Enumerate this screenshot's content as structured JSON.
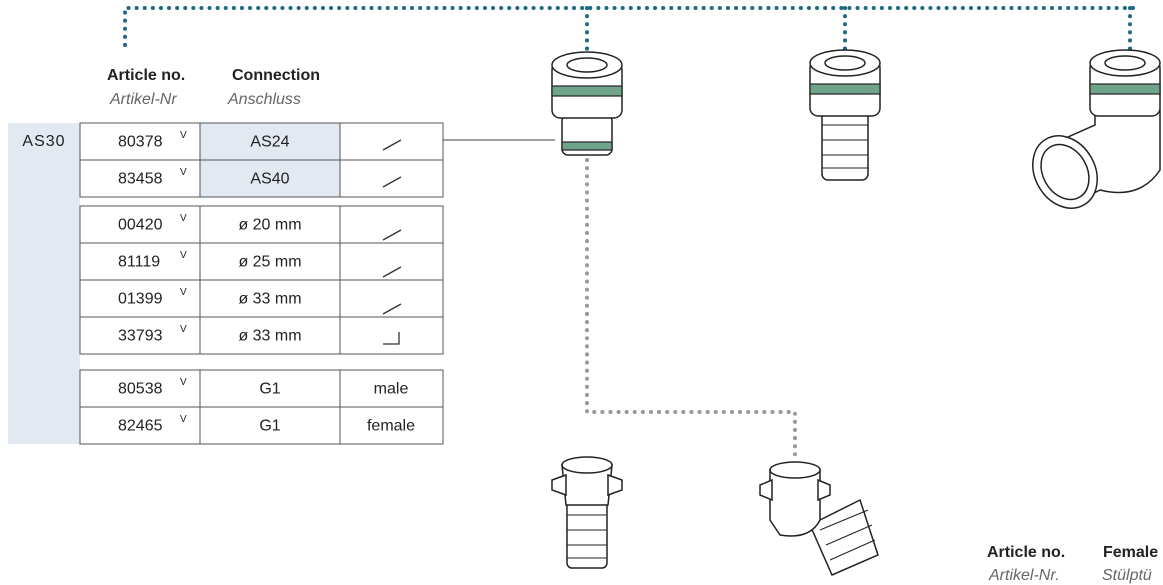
{
  "header": {
    "article_label": "Article no.",
    "article_label_de": "Artikel-Nr",
    "connection_label": "Connection",
    "connection_label_de": "Anschluss"
  },
  "table": {
    "group_label": "AS30",
    "rows": [
      [
        "80378",
        "V",
        "AS24"
      ],
      [
        "83458",
        "V",
        "AS40"
      ],
      [
        "00420",
        "V",
        "ø 20 mm"
      ],
      [
        "81119",
        "V",
        "ø 25 mm"
      ],
      [
        "01399",
        "V",
        "ø 33 mm"
      ],
      [
        "33793",
        "V",
        "ø 33 mm"
      ],
      [
        "80538",
        "V",
        "G1",
        "male"
      ],
      [
        "82465",
        "V",
        "G1",
        "female"
      ]
    ]
  },
  "footer": {
    "article_label": "Article no.",
    "article_label_de": "Artikel-Nr.",
    "female_label": "Female",
    "female_label_de": "Stülptü"
  }
}
